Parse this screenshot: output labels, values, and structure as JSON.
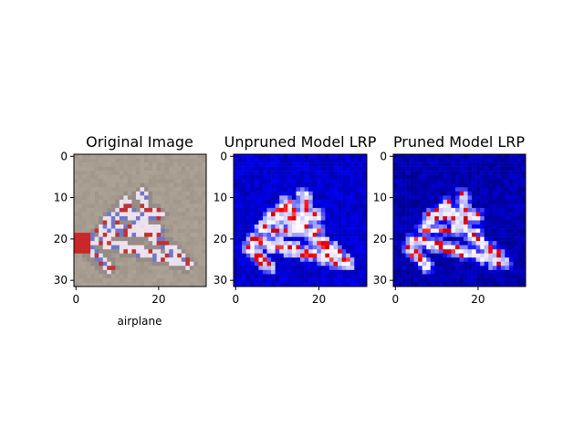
{
  "figure": {
    "panels": [
      {
        "title": "Original Image",
        "xlabel": "airplane",
        "kind": "photo"
      },
      {
        "title": "Unpruned Model LRP",
        "xlabel": "",
        "kind": "heatmap"
      },
      {
        "title": "Pruned Model LRP",
        "xlabel": "",
        "kind": "heatmap"
      }
    ]
  },
  "chart_data": [
    {
      "type": "heatmap",
      "title": "Original Image",
      "xlabel": "airplane",
      "ylabel": "",
      "image_size": [
        32,
        32
      ],
      "xlim": [
        0,
        31
      ],
      "ylim": [
        31,
        0
      ],
      "xticks": [
        0,
        20
      ],
      "yticks": [
        0,
        10,
        20,
        30
      ],
      "content": "32x32 CIFAR-10 sample of a white airplane with red and blue markings on a grey background"
    },
    {
      "type": "heatmap",
      "title": "Unpruned Model LRP",
      "xlabel": "",
      "ylabel": "",
      "image_size": [
        32,
        32
      ],
      "xlim": [
        0,
        31
      ],
      "ylim": [
        31,
        0
      ],
      "xticks": [
        0,
        20
      ],
      "yticks": [
        0,
        10,
        20,
        30
      ],
      "colormap": "seismic",
      "colors": {
        "low": "#00008c",
        "mid": "#ffffff",
        "high": "#ff0000"
      }
    },
    {
      "type": "heatmap",
      "title": "Pruned Model LRP",
      "xlabel": "",
      "ylabel": "",
      "image_size": [
        32,
        32
      ],
      "xlim": [
        0,
        31
      ],
      "ylim": [
        31,
        0
      ],
      "xticks": [
        0,
        20
      ],
      "yticks": [
        0,
        10,
        20,
        30
      ],
      "colormap": "seismic",
      "colors": {
        "low": "#00008c",
        "mid": "#ffffff",
        "high": "#ff0000"
      }
    }
  ]
}
